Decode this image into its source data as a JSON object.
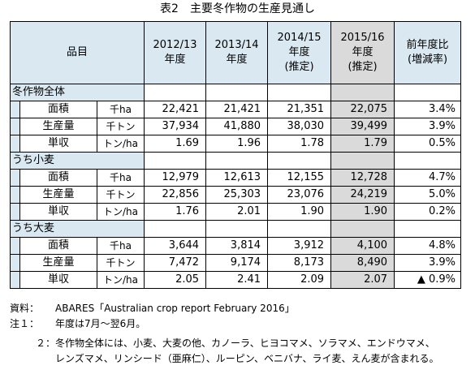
{
  "title": "表2　主要冬作物の生産見通し",
  "header": {
    "item": "品目",
    "col1": "2012/13\n年度",
    "col2": "2013/14\n年度",
    "col3": "2014/15\n年度\n(推定)",
    "col4": "2015/16\n年度\n(推定)",
    "col5": "前年度比\n(増減率)"
  },
  "sections": [
    {
      "label": "冬作物全体",
      "rows": [
        {
          "item": "面積",
          "unit": "千ha",
          "v1": "22,421",
          "v2": "21,421",
          "v3": "21,351",
          "v4": "22,075",
          "pct": "3.4%"
        },
        {
          "item": "生産量",
          "unit": "千トン",
          "v1": "37,934",
          "v2": "41,880",
          "v3": "38,030",
          "v4": "39,499",
          "pct": "3.9%"
        },
        {
          "item": "単収",
          "unit": "トン/ha",
          "v1": "1.69",
          "v2": "1.96",
          "v3": "1.78",
          "v4": "1.79",
          "pct": "0.5%"
        }
      ]
    },
    {
      "label": "うち小麦",
      "rows": [
        {
          "item": "面積",
          "unit": "千ha",
          "v1": "12,979",
          "v2": "12,613",
          "v3": "12,155",
          "v4": "12,728",
          "pct": "4.7%"
        },
        {
          "item": "生産量",
          "unit": "千トン",
          "v1": "22,856",
          "v2": "25,303",
          "v3": "23,076",
          "v4": "24,219",
          "pct": "5.0%"
        },
        {
          "item": "単収",
          "unit": "トン/ha",
          "v1": "1.76",
          "v2": "2.01",
          "v3": "1.90",
          "v4": "1.90",
          "pct": "0.2%"
        }
      ]
    },
    {
      "label": "うち大麦",
      "rows": [
        {
          "item": "面積",
          "unit": "千ha",
          "v1": "3,644",
          "v2": "3,814",
          "v3": "3,912",
          "v4": "4,100",
          "pct": "4.8%"
        },
        {
          "item": "生産量",
          "unit": "千トン",
          "v1": "7,472",
          "v2": "9,174",
          "v3": "8,173",
          "v4": "8,490",
          "pct": "3.9%"
        },
        {
          "item": "単収",
          "unit": "トン/ha",
          "v1": "2.05",
          "v2": "2.41",
          "v3": "2.09",
          "v4": "2.07",
          "pct": "▲ 0.9%"
        }
      ]
    }
  ],
  "notes": {
    "source_label": "資料：",
    "source_text": "ABARES「Australian crop report February 2016」",
    "note1_label": "注１：",
    "note1_text": "年度は7月～翌6月。",
    "note2_label": "２：",
    "note2_text_line1": "冬作物全体には、小麦、大麦の他、カノーラ、ヒヨコマメ、ソラマメ、エンドウマメ、",
    "note2_text_line2": "レンズマメ、リンシード（亜麻仁）、ルーピン、ベニバナ、ライ麦、えん麦が含まれる。"
  },
  "colors": {
    "header_bg": "#dae8f1",
    "estimate_bg": "#dadada",
    "border": "#000000"
  }
}
